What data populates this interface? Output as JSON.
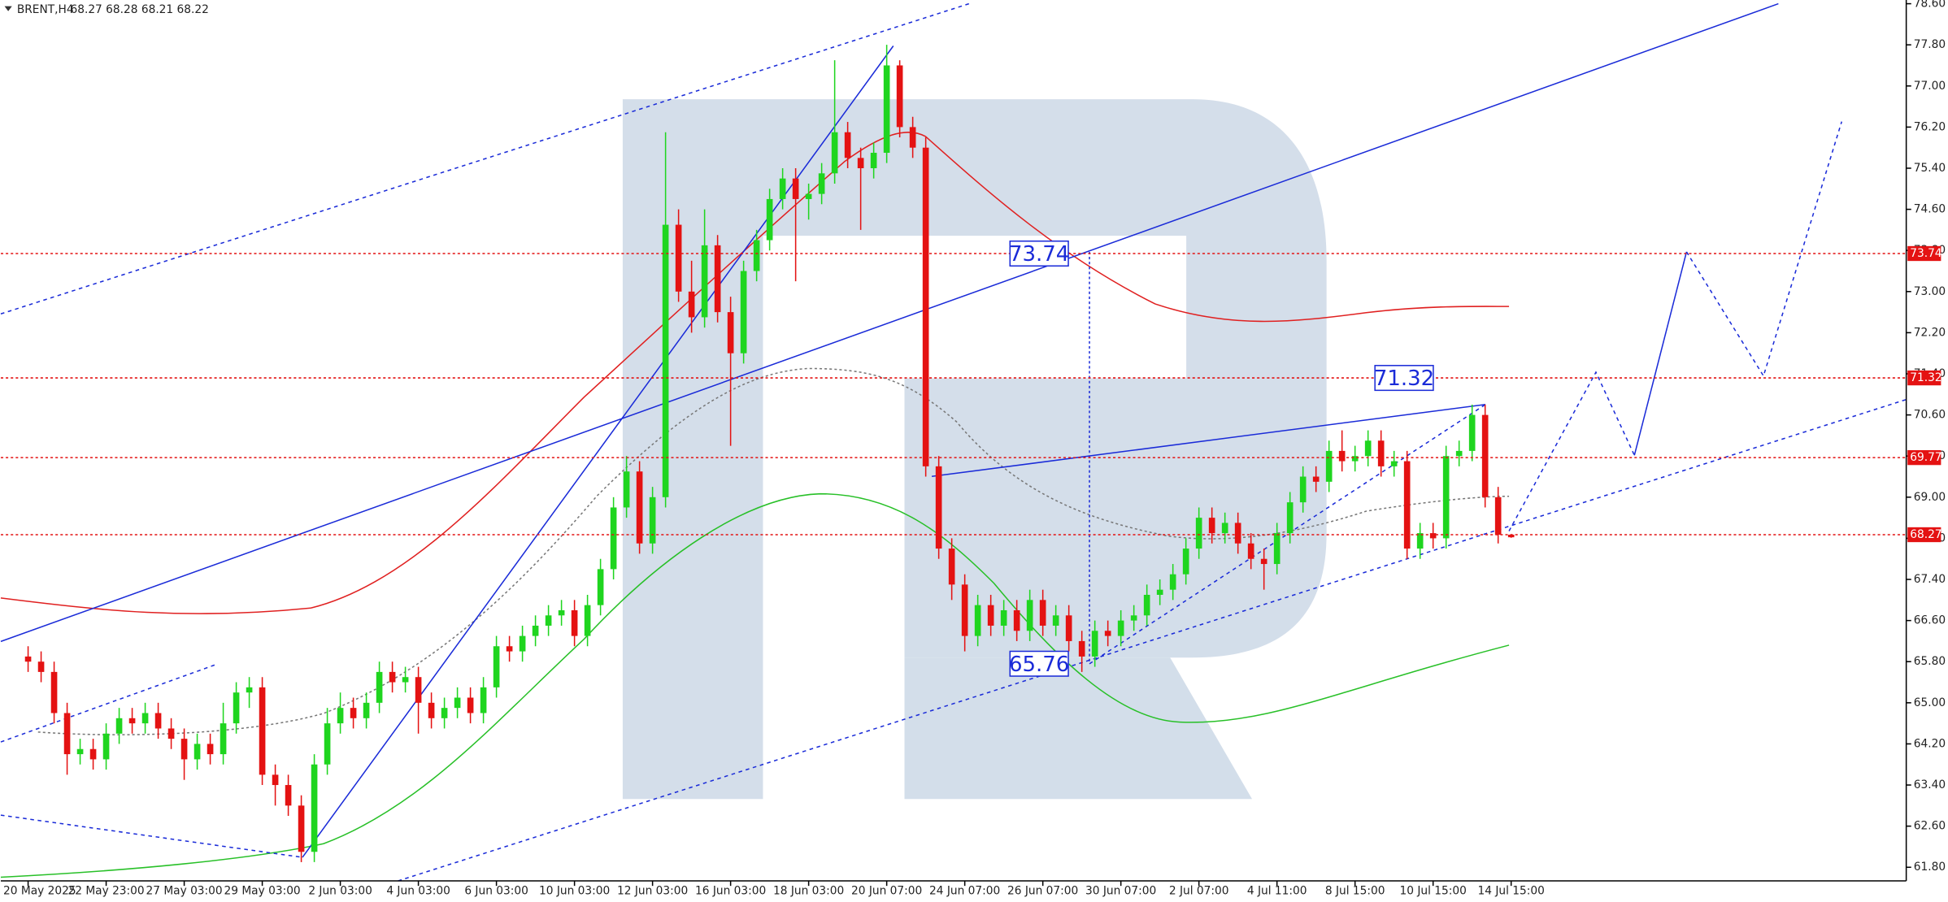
{
  "chart_data": {
    "type": "candlestick",
    "title": "BRENT,H4",
    "quote": "68.27 68.28 68.21 68.22",
    "categories": [
      "20 May 2025",
      null,
      null,
      null,
      null,
      null,
      "22 May 23:00",
      null,
      null,
      null,
      null,
      null,
      "27 May 03:00",
      null,
      null,
      null,
      null,
      null,
      "29 May 03:00",
      null,
      null,
      null,
      null,
      null,
      "2 Jun 03:00",
      null,
      null,
      null,
      null,
      null,
      "4 Jun 03:00",
      null,
      null,
      null,
      null,
      null,
      "6 Jun 03:00",
      null,
      null,
      null,
      null,
      null,
      "10 Jun 03:00",
      null,
      null,
      null,
      null,
      null,
      "12 Jun 03:00",
      null,
      null,
      null,
      null,
      null,
      "16 Jun 03:00",
      null,
      null,
      null,
      null,
      null,
      "18 Jun 03:00",
      null,
      null,
      null,
      null,
      null,
      "20 Jun 07:00",
      null,
      null,
      null,
      null,
      null,
      "24 Jun 07:00",
      null,
      null,
      null,
      null,
      null,
      "26 Jun 07:00",
      null,
      null,
      null,
      null,
      null,
      "30 Jun 07:00",
      null,
      null,
      null,
      null,
      null,
      "2 Jul 07:00",
      null,
      null,
      null,
      null,
      null,
      "4 Jul 11:00",
      null,
      null,
      null,
      null,
      null,
      "8 Jul 15:00",
      null,
      null,
      null,
      null,
      null,
      "10 Jul 15:00",
      null,
      null,
      null,
      null,
      null,
      "14 Jul 15:00"
    ],
    "open": [
      65.9,
      65.8,
      65.6,
      64.8,
      64.0,
      64.1,
      63.9,
      64.4,
      64.7,
      64.6,
      64.8,
      64.5,
      64.3,
      63.9,
      64.2,
      64.0,
      64.6,
      65.2,
      65.3,
      63.6,
      63.4,
      63.0,
      62.1,
      63.8,
      64.6,
      64.9,
      64.7,
      65.0,
      65.6,
      65.4,
      65.5,
      65.0,
      64.7,
      64.9,
      65.1,
      64.8,
      65.3,
      66.1,
      66.0,
      66.3,
      66.5,
      66.7,
      66.8,
      66.3,
      66.9,
      67.6,
      68.8,
      69.5,
      68.1,
      69.0,
      74.3,
      73.0,
      72.5,
      73.9,
      72.6,
      71.8,
      73.4,
      74.0,
      74.8,
      75.2,
      74.8,
      74.9,
      75.3,
      76.1,
      75.6,
      75.4,
      75.7,
      77.4,
      76.2,
      75.8,
      69.6,
      68.0,
      67.3,
      66.3,
      66.9,
      66.5,
      66.8,
      66.4,
      67.0,
      66.5,
      66.7,
      66.2,
      65.9,
      66.4,
      66.3,
      66.6,
      66.7,
      67.1,
      67.2,
      67.5,
      68.0,
      68.6,
      68.3,
      68.5,
      68.1,
      67.8,
      67.7,
      68.3,
      68.9,
      69.4,
      69.3,
      69.9,
      69.7,
      69.8,
      70.1,
      69.6,
      69.7,
      68.0,
      68.3,
      68.2,
      69.8,
      69.9,
      70.6,
      69.0,
      68.27
    ],
    "high": [
      66.1,
      66.0,
      65.8,
      65.0,
      64.3,
      64.3,
      64.6,
      64.9,
      64.9,
      65.0,
      65.0,
      64.7,
      64.5,
      64.4,
      64.4,
      65.0,
      65.4,
      65.5,
      65.5,
      63.8,
      63.6,
      63.2,
      64.0,
      64.9,
      65.2,
      65.1,
      65.2,
      65.8,
      65.8,
      65.7,
      65.7,
      65.2,
      65.1,
      65.3,
      65.3,
      65.5,
      66.3,
      66.3,
      66.5,
      66.7,
      66.9,
      67.0,
      67.0,
      67.1,
      67.8,
      69.0,
      69.8,
      69.7,
      69.2,
      76.1,
      74.6,
      73.6,
      74.6,
      74.1,
      72.9,
      73.6,
      74.2,
      75.0,
      75.4,
      75.4,
      75.1,
      75.5,
      77.5,
      76.3,
      75.8,
      75.9,
      77.8,
      77.5,
      76.4,
      76.0,
      69.8,
      68.2,
      67.5,
      67.1,
      67.1,
      67.0,
      67.0,
      67.2,
      67.2,
      66.9,
      66.9,
      66.4,
      66.6,
      66.6,
      66.8,
      66.9,
      67.3,
      67.4,
      67.7,
      68.2,
      68.8,
      68.8,
      68.7,
      68.7,
      68.3,
      68.0,
      68.5,
      69.1,
      69.6,
      69.6,
      70.1,
      70.3,
      70.0,
      70.3,
      70.3,
      69.9,
      69.9,
      68.5,
      68.5,
      70.0,
      70.1,
      70.8,
      70.8,
      69.2,
      68.28
    ],
    "low": [
      65.6,
      65.4,
      64.6,
      63.6,
      63.8,
      63.7,
      63.7,
      64.2,
      64.4,
      64.4,
      64.3,
      64.1,
      63.5,
      63.7,
      63.8,
      63.8,
      64.4,
      64.9,
      63.4,
      63.0,
      62.8,
      61.9,
      61.9,
      63.6,
      64.4,
      64.5,
      64.5,
      64.8,
      65.2,
      65.2,
      64.4,
      64.5,
      64.5,
      64.7,
      64.6,
      64.6,
      65.1,
      65.8,
      65.8,
      66.1,
      66.3,
      66.5,
      66.1,
      66.1,
      66.7,
      67.4,
      68.6,
      67.9,
      67.9,
      68.8,
      72.8,
      72.2,
      72.3,
      72.4,
      70.0,
      71.6,
      73.2,
      73.8,
      74.6,
      73.2,
      74.4,
      74.7,
      75.1,
      75.4,
      74.2,
      75.2,
      75.5,
      76.0,
      75.6,
      69.4,
      67.8,
      67.0,
      66.0,
      66.1,
      66.3,
      66.3,
      66.2,
      66.2,
      66.3,
      66.3,
      66.0,
      65.6,
      65.7,
      66.1,
      66.1,
      66.4,
      66.5,
      66.9,
      67.0,
      67.3,
      67.8,
      68.1,
      68.1,
      67.9,
      67.6,
      67.2,
      67.5,
      68.1,
      68.7,
      69.1,
      69.1,
      69.5,
      69.5,
      69.6,
      69.4,
      69.4,
      67.8,
      67.8,
      68.0,
      68.0,
      69.6,
      69.7,
      68.8,
      68.1,
      68.21
    ],
    "close": [
      65.8,
      65.6,
      64.8,
      64.0,
      64.1,
      63.9,
      64.4,
      64.7,
      64.6,
      64.8,
      64.5,
      64.3,
      63.9,
      64.2,
      64.0,
      64.6,
      65.2,
      65.3,
      63.6,
      63.4,
      63.0,
      62.1,
      63.8,
      64.6,
      64.9,
      64.7,
      65.0,
      65.6,
      65.4,
      65.5,
      65.0,
      64.7,
      64.9,
      65.1,
      64.8,
      65.3,
      66.1,
      66.0,
      66.3,
      66.5,
      66.7,
      66.8,
      66.3,
      66.9,
      67.6,
      68.8,
      69.5,
      68.1,
      69.0,
      74.3,
      73.0,
      72.5,
      73.9,
      72.6,
      71.8,
      73.4,
      74.0,
      74.8,
      75.2,
      74.8,
      74.9,
      75.3,
      76.1,
      75.6,
      75.4,
      75.7,
      77.4,
      76.2,
      75.8,
      69.6,
      68.0,
      67.3,
      66.3,
      66.9,
      66.5,
      66.8,
      66.4,
      67.0,
      66.5,
      66.7,
      66.2,
      65.9,
      66.4,
      66.3,
      66.6,
      66.7,
      67.1,
      67.2,
      67.5,
      68.0,
      68.6,
      68.3,
      68.5,
      68.1,
      67.8,
      67.7,
      68.3,
      68.9,
      69.4,
      69.3,
      69.9,
      69.7,
      69.8,
      70.1,
      69.6,
      69.7,
      68.0,
      68.3,
      68.2,
      69.8,
      69.9,
      70.6,
      69.0,
      68.27,
      68.22
    ],
    "up_color": "#1fd51f",
    "down_color": "#e41212",
    "level_color": "#e41212",
    "annotation_color": "#1a2bd8",
    "ylim": [
      61.8,
      78.6
    ],
    "yticks": [
      {
        "value": 78.6,
        "label": "78.60"
      },
      {
        "value": 77.8,
        "label": "77.80"
      },
      {
        "value": 77.0,
        "label": "77.00"
      },
      {
        "value": 76.2,
        "label": "76.20"
      },
      {
        "value": 75.4,
        "label": "75.40"
      },
      {
        "value": 74.6,
        "label": "74.60"
      },
      {
        "value": 73.8,
        "label": "73.80"
      },
      {
        "value": 73.0,
        "label": "73.00"
      },
      {
        "value": 72.2,
        "label": "72.20"
      },
      {
        "value": 71.4,
        "label": "71.40"
      },
      {
        "value": 70.6,
        "label": "70.60"
      },
      {
        "value": 69.8,
        "label": "69.80"
      },
      {
        "value": 69.0,
        "label": "69.00"
      },
      {
        "value": 68.2,
        "label": "68.20"
      },
      {
        "value": 67.4,
        "label": "67.40"
      },
      {
        "value": 66.6,
        "label": "66.60"
      },
      {
        "value": 65.8,
        "label": "65.80"
      },
      {
        "value": 65.0,
        "label": "65.00"
      },
      {
        "value": 64.2,
        "label": "64.20"
      },
      {
        "value": 63.4,
        "label": "63.40"
      },
      {
        "value": 62.6,
        "label": "62.60"
      },
      {
        "value": 61.8,
        "label": "61.80"
      }
    ],
    "levels": [
      73.74,
      71.32,
      69.77,
      68.27
    ],
    "annotations": [
      73.74,
      71.32,
      65.76
    ]
  }
}
